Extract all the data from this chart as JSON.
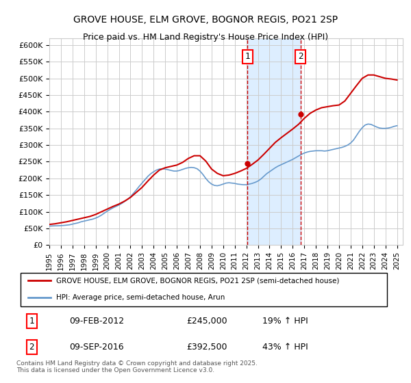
{
  "title": "GROVE HOUSE, ELM GROVE, BOGNOR REGIS, PO21 2SP",
  "subtitle": "Price paid vs. HM Land Registry's House Price Index (HPI)",
  "ylabel": "",
  "xlabel": "",
  "ylim": [
    0,
    620000
  ],
  "yticks": [
    0,
    50000,
    100000,
    150000,
    200000,
    250000,
    300000,
    350000,
    400000,
    450000,
    500000,
    550000,
    600000
  ],
  "ytick_labels": [
    "£0",
    "£50K",
    "£100K",
    "£150K",
    "£200K",
    "£250K",
    "£300K",
    "£350K",
    "£400K",
    "£450K",
    "£500K",
    "£550K",
    "£600K"
  ],
  "xlim_start": 1995.0,
  "xlim_end": 2025.5,
  "transaction1_x": 2012.11,
  "transaction2_x": 2016.69,
  "transaction1_price": 245000,
  "transaction2_price": 392500,
  "transaction1_label": "1",
  "transaction2_label": "2",
  "transaction1_date": "09-FEB-2012",
  "transaction2_date": "09-SEP-2016",
  "transaction1_hpi": "19% ↑ HPI",
  "transaction2_hpi": "43% ↑ HPI",
  "legend_property": "GROVE HOUSE, ELM GROVE, BOGNOR REGIS, PO21 2SP (semi-detached house)",
  "legend_hpi": "HPI: Average price, semi-detached house, Arun",
  "footer": "Contains HM Land Registry data © Crown copyright and database right 2025.\nThis data is licensed under the Open Government Licence v3.0.",
  "line_color_property": "#cc0000",
  "line_color_hpi": "#6699cc",
  "shade_color": "#ddeeff",
  "grid_color": "#cccccc",
  "background_color": "#ffffff",
  "hpi_years": [
    1995,
    1995.25,
    1995.5,
    1995.75,
    1996,
    1996.25,
    1996.5,
    1996.75,
    1997,
    1997.25,
    1997.5,
    1997.75,
    1998,
    1998.25,
    1998.5,
    1998.75,
    1999,
    1999.25,
    1999.5,
    1999.75,
    2000,
    2000.25,
    2000.5,
    2000.75,
    2001,
    2001.25,
    2001.5,
    2001.75,
    2002,
    2002.25,
    2002.5,
    2002.75,
    2003,
    2003.25,
    2003.5,
    2003.75,
    2004,
    2004.25,
    2004.5,
    2004.75,
    2005,
    2005.25,
    2005.5,
    2005.75,
    2006,
    2006.25,
    2006.5,
    2006.75,
    2007,
    2007.25,
    2007.5,
    2007.75,
    2008,
    2008.25,
    2008.5,
    2008.75,
    2009,
    2009.25,
    2009.5,
    2009.75,
    2010,
    2010.25,
    2010.5,
    2010.75,
    2011,
    2011.25,
    2011.5,
    2011.75,
    2012,
    2012.25,
    2012.5,
    2012.75,
    2013,
    2013.25,
    2013.5,
    2013.75,
    2014,
    2014.25,
    2014.5,
    2014.75,
    2015,
    2015.25,
    2015.5,
    2015.75,
    2016,
    2016.25,
    2016.5,
    2016.75,
    2017,
    2017.25,
    2017.5,
    2017.75,
    2018,
    2018.25,
    2018.5,
    2018.75,
    2019,
    2019.25,
    2019.5,
    2019.75,
    2020,
    2020.25,
    2020.5,
    2020.75,
    2021,
    2021.25,
    2021.5,
    2021.75,
    2022,
    2022.25,
    2022.5,
    2022.75,
    2023,
    2023.25,
    2023.5,
    2023.75,
    2024,
    2024.25,
    2024.5,
    2024.75,
    2025
  ],
  "hpi_values": [
    57000,
    57500,
    57800,
    58000,
    58500,
    59000,
    60000,
    61000,
    63000,
    65000,
    67000,
    70000,
    72000,
    74000,
    76000,
    78000,
    81000,
    85000,
    90000,
    96000,
    102000,
    107000,
    112000,
    116000,
    120000,
    125000,
    131000,
    137000,
    145000,
    155000,
    165000,
    176000,
    186000,
    196000,
    206000,
    214000,
    220000,
    225000,
    228000,
    229000,
    228000,
    226000,
    224000,
    222000,
    222000,
    224000,
    227000,
    230000,
    232000,
    233000,
    232000,
    229000,
    222000,
    212000,
    200000,
    190000,
    183000,
    179000,
    178000,
    180000,
    183000,
    186000,
    187000,
    186000,
    185000,
    183000,
    182000,
    181000,
    181000,
    183000,
    185000,
    188000,
    192000,
    198000,
    206000,
    214000,
    220000,
    226000,
    232000,
    237000,
    241000,
    245000,
    249000,
    253000,
    257000,
    262000,
    267000,
    272000,
    276000,
    279000,
    281000,
    282000,
    283000,
    283000,
    283000,
    282000,
    283000,
    285000,
    287000,
    289000,
    291000,
    293000,
    296000,
    300000,
    306000,
    315000,
    328000,
    341000,
    352000,
    360000,
    363000,
    362000,
    358000,
    354000,
    351000,
    350000,
    350000,
    351000,
    353000,
    356000,
    358000
  ],
  "property_years": [
    1995,
    1995.5,
    1996,
    1996.5,
    1997,
    1997.5,
    1998,
    1998.5,
    1999,
    1999.5,
    2000,
    2000.5,
    2001,
    2001.5,
    2002,
    2002.5,
    2003,
    2003.5,
    2004,
    2004.5,
    2005,
    2005.5,
    2006,
    2006.5,
    2007,
    2007.5,
    2008,
    2008.5,
    2009,
    2009.5,
    2010,
    2010.5,
    2011,
    2011.5,
    2012,
    2012.5,
    2013,
    2013.5,
    2014,
    2014.5,
    2015,
    2015.5,
    2016,
    2016.5,
    2017,
    2017.5,
    2018,
    2018.5,
    2019,
    2019.5,
    2020,
    2020.5,
    2021,
    2021.5,
    2022,
    2022.5,
    2023,
    2023.5,
    2024,
    2024.5,
    2025
  ],
  "property_values": [
    62000,
    64000,
    67000,
    70000,
    74000,
    78000,
    82000,
    86000,
    92000,
    100000,
    108000,
    116000,
    123000,
    132000,
    143000,
    158000,
    173000,
    192000,
    210000,
    225000,
    232000,
    236000,
    240000,
    248000,
    260000,
    268000,
    268000,
    252000,
    228000,
    215000,
    208000,
    210000,
    215000,
    222000,
    230000,
    242000,
    255000,
    272000,
    290000,
    308000,
    322000,
    335000,
    348000,
    362000,
    380000,
    395000,
    405000,
    412000,
    415000,
    418000,
    420000,
    432000,
    455000,
    478000,
    500000,
    510000,
    510000,
    505000,
    500000,
    498000,
    495000
  ],
  "xtick_years": [
    1995,
    1996,
    1997,
    1998,
    1999,
    2000,
    2001,
    2002,
    2003,
    2004,
    2005,
    2006,
    2007,
    2008,
    2009,
    2010,
    2011,
    2012,
    2013,
    2014,
    2015,
    2016,
    2017,
    2018,
    2019,
    2020,
    2021,
    2022,
    2023,
    2024,
    2025
  ]
}
